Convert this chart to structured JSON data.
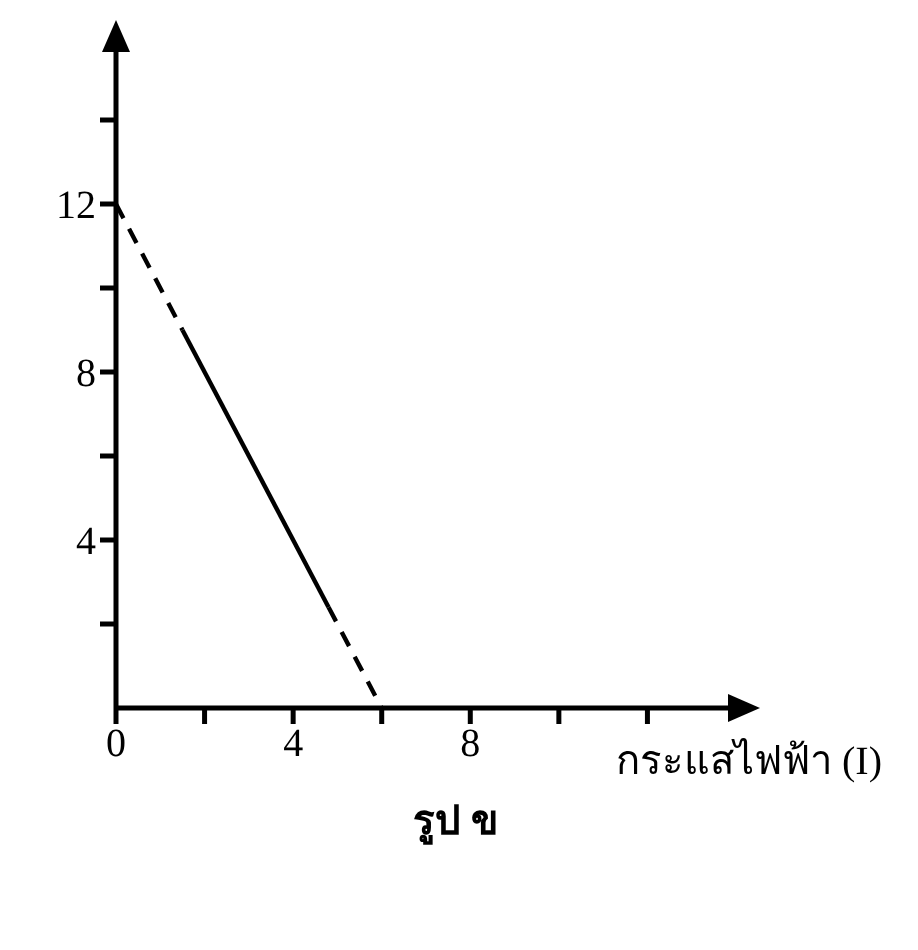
{
  "chart_data": {
    "type": "line",
    "title": "รูป ข",
    "xlabel": "กระแสไฟฟ้า (I)",
    "xlim": [
      0,
      14
    ],
    "ylim": [
      0,
      16
    ],
    "xticks": [
      0,
      {
        "value": 2,
        "label": null
      },
      4,
      {
        "value": 6,
        "label": null
      },
      8,
      {
        "value": 10,
        "label": null
      },
      {
        "value": 12,
        "label": null
      }
    ],
    "yticks": [
      {
        "value": 2,
        "label": null
      },
      4,
      {
        "value": 6,
        "label": null
      },
      8,
      {
        "value": 10,
        "label": null
      },
      12,
      {
        "value": 14,
        "label": null
      }
    ],
    "series": [
      {
        "color": "#000000",
        "line_style": "dashed",
        "x": [
          0,
          1.5
        ],
        "values": [
          12,
          9
        ]
      },
      {
        "color": "#000000",
        "line_style": "solid",
        "x": [
          1.5,
          4.8
        ],
        "values": [
          9,
          2.4
        ]
      },
      {
        "color": "#000000",
        "line_style": "dashed",
        "x": [
          4.8,
          6
        ],
        "values": [
          2.4,
          0
        ]
      }
    ],
    "grid": false,
    "legend": false
  }
}
